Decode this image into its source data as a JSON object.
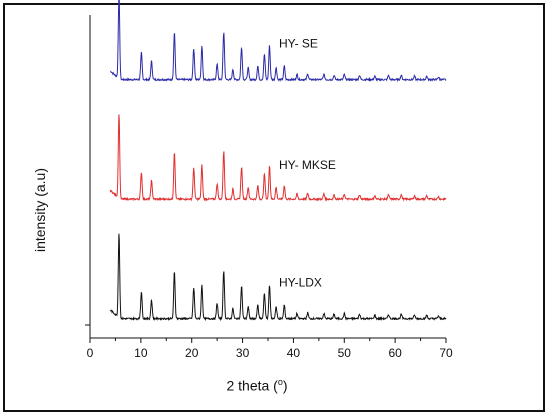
{
  "chart_data": {
    "type": "line",
    "xlabel": "2 theta (",
    "xlabel_degree": "o",
    "xlabel_close": ")",
    "ylabel": "intensity (a.u)",
    "xlim": [
      0,
      70
    ],
    "xticks": [
      0,
      10,
      20,
      30,
      40,
      50,
      60,
      70
    ],
    "x_range": [
      4,
      70
    ],
    "peak_positions_deg": [
      5.7,
      10.1,
      12.1,
      16.6,
      20.4,
      22.0,
      25.0,
      26.3,
      28.1,
      29.8,
      31.1,
      33.0,
      34.3,
      35.3,
      36.6,
      38.2,
      40.7,
      42.8,
      46.0,
      48.0,
      50.0,
      53.0,
      56.0,
      58.7,
      61.2,
      63.8,
      66.2,
      68.5
    ],
    "series": [
      {
        "name": "HY- SE",
        "color": "#2a2aa8",
        "baseline": 0.8,
        "peak_heights": [
          1.0,
          0.32,
          0.22,
          0.56,
          0.36,
          0.4,
          0.18,
          0.56,
          0.12,
          0.38,
          0.14,
          0.16,
          0.3,
          0.4,
          0.14,
          0.16,
          0.06,
          0.07,
          0.06,
          0.05,
          0.06,
          0.05,
          0.04,
          0.05,
          0.05,
          0.04,
          0.04,
          0.03
        ]
      },
      {
        "name": "HY- MKSE",
        "color": "#e03030",
        "baseline": 0.43,
        "peak_heights": [
          1.0,
          0.32,
          0.22,
          0.56,
          0.36,
          0.4,
          0.18,
          0.56,
          0.12,
          0.38,
          0.14,
          0.16,
          0.3,
          0.4,
          0.14,
          0.16,
          0.06,
          0.07,
          0.06,
          0.05,
          0.06,
          0.05,
          0.04,
          0.05,
          0.05,
          0.04,
          0.04,
          0.03
        ]
      },
      {
        "name": "HY-LDX",
        "color": "#111111",
        "baseline": 0.06,
        "peak_heights": [
          1.0,
          0.32,
          0.22,
          0.56,
          0.36,
          0.4,
          0.18,
          0.56,
          0.12,
          0.38,
          0.14,
          0.16,
          0.3,
          0.4,
          0.14,
          0.16,
          0.06,
          0.07,
          0.06,
          0.05,
          0.06,
          0.05,
          0.04,
          0.05,
          0.05,
          0.04,
          0.04,
          0.03
        ]
      }
    ]
  }
}
